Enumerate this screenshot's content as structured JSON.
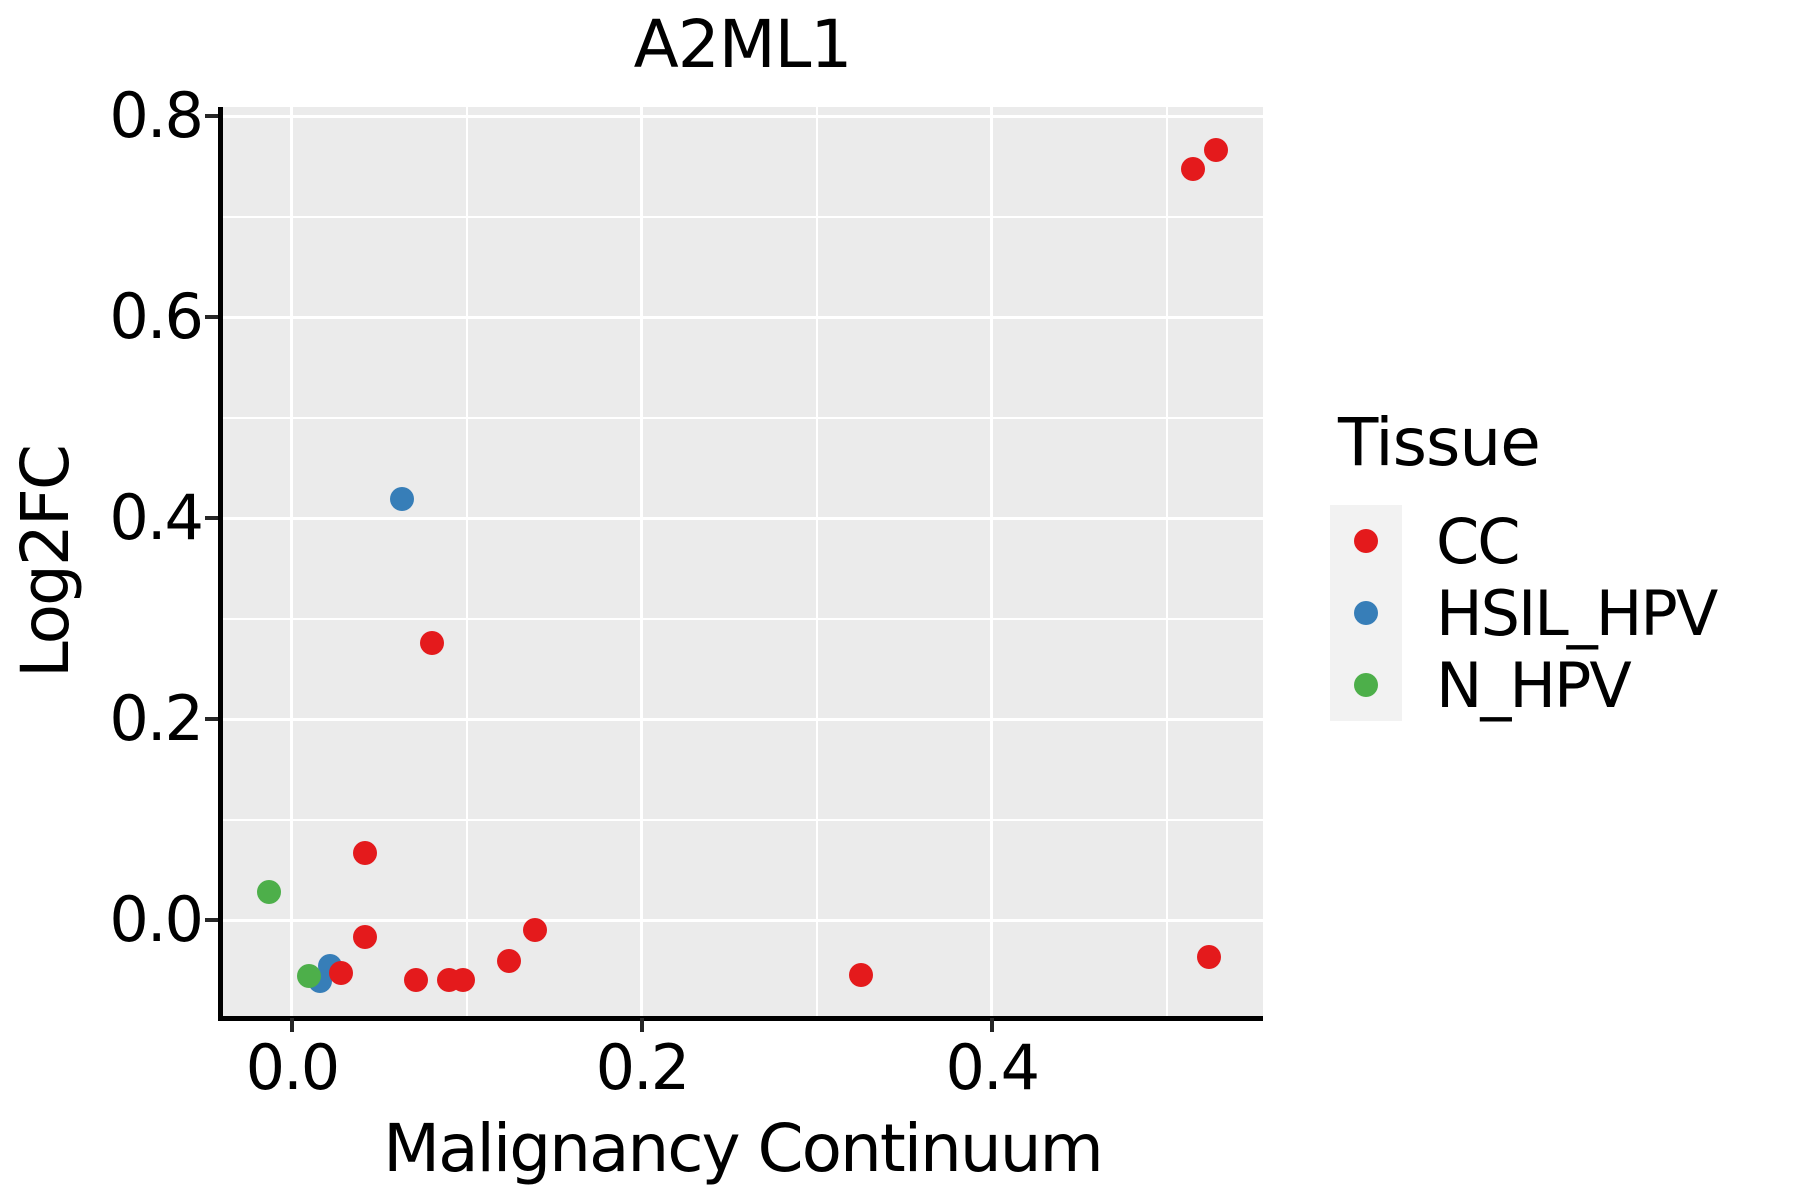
{
  "title": "A2ML1",
  "axes": {
    "x": {
      "label": "Malignancy Continuum",
      "range": [
        -0.04,
        0.555
      ],
      "major_ticks": [
        {
          "value": 0.0,
          "label": "0.0"
        },
        {
          "value": 0.2,
          "label": "0.2"
        },
        {
          "value": 0.4,
          "label": "0.4"
        }
      ],
      "minor_ticks": [
        0.1,
        0.3,
        0.5
      ]
    },
    "y": {
      "label": "Log2FC",
      "range": [
        -0.0975,
        0.809
      ],
      "major_ticks": [
        {
          "value": 0.0,
          "label": "0.0"
        },
        {
          "value": 0.2,
          "label": "0.2"
        },
        {
          "value": 0.4,
          "label": "0.4"
        },
        {
          "value": 0.6,
          "label": "0.6"
        },
        {
          "value": 0.8,
          "label": "0.8"
        }
      ],
      "minor_ticks": [
        0.1,
        0.3,
        0.5,
        0.7
      ]
    }
  },
  "legend": {
    "title": "Tissue",
    "items": [
      {
        "label": "CC",
        "color": "#E41A1C"
      },
      {
        "label": "HSIL_HPV",
        "color": "#377EB8"
      },
      {
        "label": "N_HPV",
        "color": "#4DAF4A"
      }
    ]
  },
  "chart_data": {
    "type": "scatter",
    "title": "A2ML1",
    "xlabel": "Malignancy Continuum",
    "ylabel": "Log2FC",
    "x_range": [
      -0.04,
      0.555
    ],
    "y_range": [
      -0.0975,
      0.809
    ],
    "grid": "white major and minor gridlines on gray panel",
    "legend_position": "right",
    "point_radius_px": 12,
    "draw_order": [
      "HSIL_HPV",
      "N_HPV",
      "CC"
    ],
    "series": [
      {
        "name": "CC",
        "color": "#E41A1C",
        "points": [
          [
            0.528,
            0.766
          ],
          [
            0.515,
            0.747
          ],
          [
            0.08,
            0.276
          ],
          [
            0.042,
            0.067
          ],
          [
            0.042,
            -0.017
          ],
          [
            0.028,
            -0.053
          ],
          [
            0.071,
            -0.06
          ],
          [
            0.09,
            -0.06
          ],
          [
            0.098,
            -0.06
          ],
          [
            0.124,
            -0.041
          ],
          [
            0.139,
            -0.01
          ],
          [
            0.325,
            -0.055
          ],
          [
            0.524,
            -0.037
          ]
        ]
      },
      {
        "name": "HSIL_HPV",
        "color": "#377EB8",
        "points": [
          [
            0.063,
            0.419
          ],
          [
            0.022,
            -0.046
          ],
          [
            0.016,
            -0.061
          ]
        ]
      },
      {
        "name": "N_HPV",
        "color": "#4DAF4A",
        "points": [
          [
            -0.013,
            0.028
          ],
          [
            0.01,
            -0.056
          ]
        ]
      }
    ]
  },
  "style": {
    "panel_bg": "#EBEBEB",
    "grid_color": "#FFFFFF",
    "legend_key_bg": "#F2F2F2",
    "axis_color": "#000000",
    "tick_color": "#262626",
    "text_color": "#000000",
    "background": "#FFFFFF"
  }
}
